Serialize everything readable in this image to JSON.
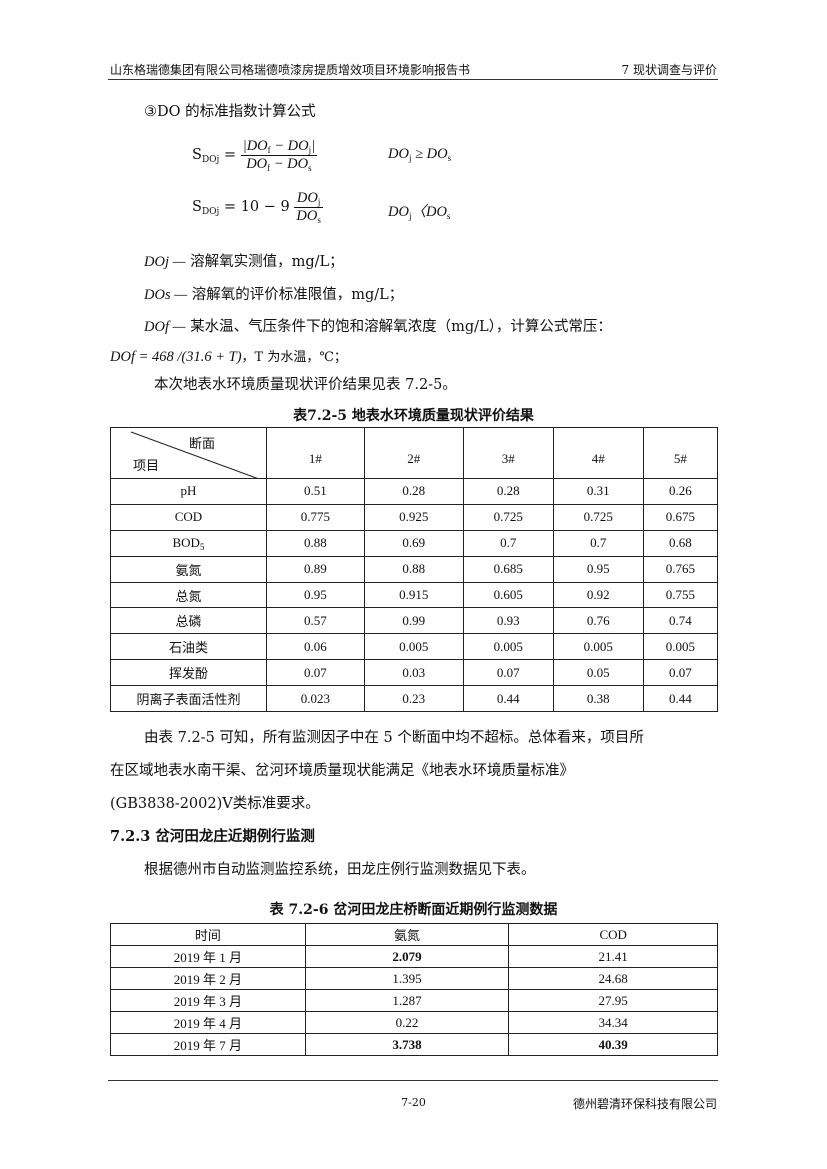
{
  "header": {
    "left": "山东格瑞德集团有限公司格瑞德喷漆房提质增效项目环境影响报告书",
    "right": "7 现状调查与评价"
  },
  "section": "③DO 的标准指数计算公式",
  "formulas": {
    "f1_lhs": "SDOj =",
    "f1_num": "|DOf − DOj|",
    "f1_den": "DOf − DOs",
    "f1_cond": "DOj ≥ DOs",
    "f2_lhs": "SDOj = 10 − 9",
    "f2_num": "DOj",
    "f2_den": "DOs",
    "f2_cond": "DOj〈DOs"
  },
  "definitions": [
    {
      "sym": "DOj —",
      "text": "溶解氧实测值，mg/L；"
    },
    {
      "sym": "DOs —",
      "text": "溶解氧的评价标准限值，mg/L；"
    },
    {
      "sym": "DOf —",
      "text": "某水温、气压条件下的饱和溶解氧浓度（mg/L），计算公式常压："
    }
  ],
  "dof_formula": "DOf = 468 /(31.6 + T)",
  "dof_note": "，T 为水温，℃；",
  "intro": "本次地表水环境质量现状评价结果见表 7.2-5。",
  "table1": {
    "caption": "表7.2-5  地表水环境质量现状评价结果",
    "corner_top": "断面",
    "corner_bottom": "项目",
    "columns": [
      "1#",
      "2#",
      "3#",
      "4#",
      "5#"
    ],
    "rows": [
      {
        "item": "pH",
        "values": [
          "0.51",
          "0.28",
          "0.28",
          "0.31",
          "0.26"
        ]
      },
      {
        "item": "COD",
        "values": [
          "0.775",
          "0.925",
          "0.725",
          "0.725",
          "0.675"
        ]
      },
      {
        "item": "BOD5",
        "values": [
          "0.88",
          "0.69",
          "0.7",
          "0.7",
          "0.68"
        ]
      },
      {
        "item": "氨氮",
        "values": [
          "0.89",
          "0.88",
          "0.685",
          "0.95",
          "0.765"
        ]
      },
      {
        "item": "总氮",
        "values": [
          "0.95",
          "0.915",
          "0.605",
          "0.92",
          "0.755"
        ]
      },
      {
        "item": "总磷",
        "values": [
          "0.57",
          "0.99",
          "0.93",
          "0.76",
          "0.74"
        ]
      },
      {
        "item": "石油类",
        "values": [
          "0.06",
          "0.005",
          "0.005",
          "0.005",
          "0.005"
        ]
      },
      {
        "item": "挥发酚",
        "values": [
          "0.07",
          "0.03",
          "0.07",
          "0.05",
          "0.07"
        ]
      },
      {
        "item": "阴离子表面活性剂",
        "values": [
          "0.023",
          "0.23",
          "0.44",
          "0.38",
          "0.44"
        ]
      }
    ]
  },
  "conclusion": [
    "由表 7.2-5 可知，所有监测因子中在 5  个断面中均不超标。总体看来，项目所",
    "在区域地表水南干渠、岔河环境质量现状能满足《地表水环境质量标准》",
    "(GB3838-2002)Ⅴ类标准要求。"
  ],
  "subsection": "7.2.3 岔河田龙庄近期例行监测",
  "sub_intro": "根据德州市自动监测监控系统，田龙庄例行监测数据见下表。",
  "table2": {
    "caption": "表 7.2-6      岔河田龙庄桥断面近期例行监测数据",
    "columns": [
      "时间",
      "氨氮",
      "COD"
    ],
    "rows": [
      {
        "time": "2019 年 1 月",
        "nh": "2.079",
        "cod": "21.41",
        "nh_bold": true,
        "cod_bold": false
      },
      {
        "time": "2019 年 2 月",
        "nh": "1.395",
        "cod": "24.68",
        "nh_bold": false,
        "cod_bold": false
      },
      {
        "time": "2019 年 3 月",
        "nh": "1.287",
        "cod": "27.95",
        "nh_bold": false,
        "cod_bold": false
      },
      {
        "time": "2019 年 4 月",
        "nh": "0.22",
        "cod": "34.34",
        "nh_bold": false,
        "cod_bold": false
      },
      {
        "time": "2019 年 7 月",
        "nh": "3.738",
        "cod": "40.39",
        "nh_bold": true,
        "cod_bold": true
      }
    ]
  },
  "footer": {
    "page": "7-20",
    "company": "德州碧清环保科技有限公司"
  }
}
